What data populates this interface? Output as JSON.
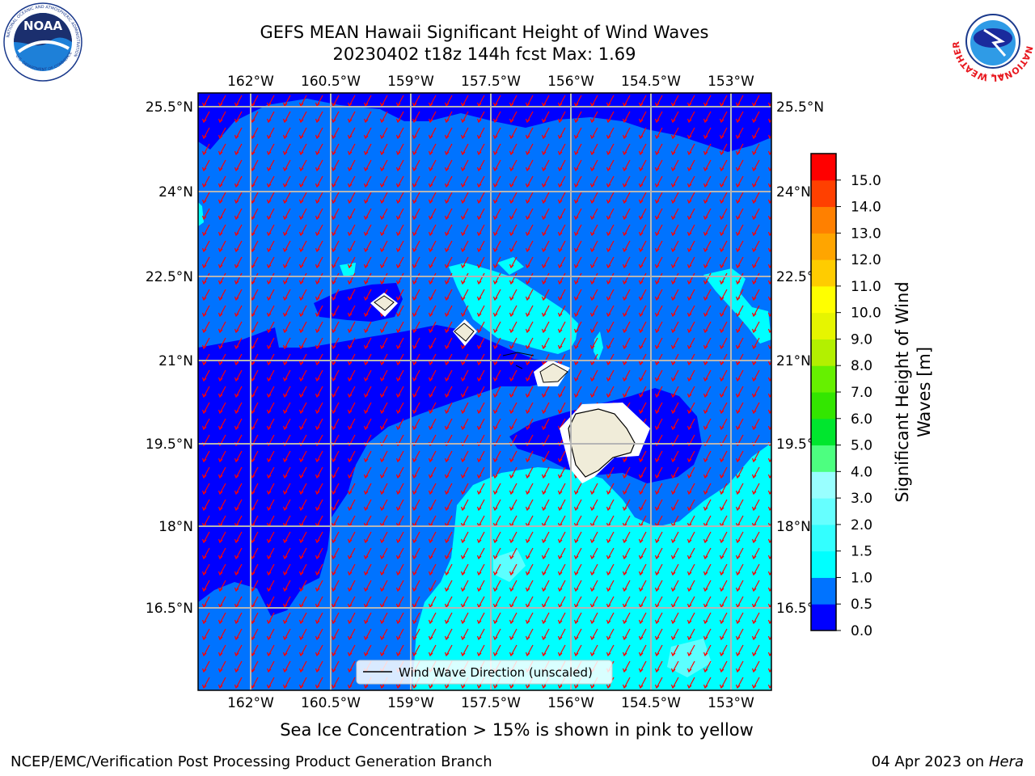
{
  "title": {
    "line1": "GEFS MEAN Hawaii Significant Height of Wind Waves",
    "line2": "20230402 t18z 144h fcst   Max: 1.69"
  },
  "map": {
    "lon_ticks": [
      "162°W",
      "160.5°W",
      "159°W",
      "157.5°W",
      "156°W",
      "154.5°W",
      "153°W"
    ],
    "lat_ticks": [
      "25.5°N",
      "24°N",
      "22.5°N",
      "21°N",
      "19.5°N",
      "18°N",
      "16.5°N"
    ],
    "legend_label": "Wind Wave Direction (unscaled)"
  },
  "colorbar": {
    "label_line1": "Significant Height of Wind",
    "label_line2": "Waves [m]",
    "ticks": [
      "0.0",
      "0.5",
      "1.0",
      "1.5",
      "2.0",
      "3.0",
      "4.0",
      "5.0",
      "6.0",
      "7.0",
      "8.0",
      "9.0",
      "10.0",
      "11.0",
      "12.0",
      "13.0",
      "14.0",
      "15.0"
    ],
    "colors": [
      "#0000ff",
      "#0073ff",
      "#00ffff",
      "#33ffff",
      "#66ffff",
      "#99ffff",
      "#4dff80",
      "#00e62e",
      "#33e600",
      "#66f000",
      "#b3f000",
      "#e6f500",
      "#ffff00",
      "#ffcc00",
      "#ffa500",
      "#ff8000",
      "#ff4000",
      "#ff0000"
    ]
  },
  "colors": {
    "deep": "#0000ff",
    "mid": "#0073ff",
    "shallow": "#00ffff",
    "arrow": "#ff0000",
    "land": "#f0ecd9",
    "grid": "#b5b5b5"
  },
  "logos": {
    "noaa_text": "NOAA",
    "noaa_ring": "NATIONAL OCEANIC AND ATMOSPHERIC ADMINISTRATION",
    "noaa_ring_bottom": "U.S. DEPARTMENT OF COMMERCE",
    "nws_ring": "NATIONAL WEATHER SERVICE"
  },
  "footer": {
    "note": "Sea Ice Concentration > 15% is shown in pink to yellow",
    "left": "NCEP/EMC/Verification Post Processing Product Generation Branch",
    "right_date": "04 Apr 2023 on ",
    "right_host": "Hera"
  }
}
